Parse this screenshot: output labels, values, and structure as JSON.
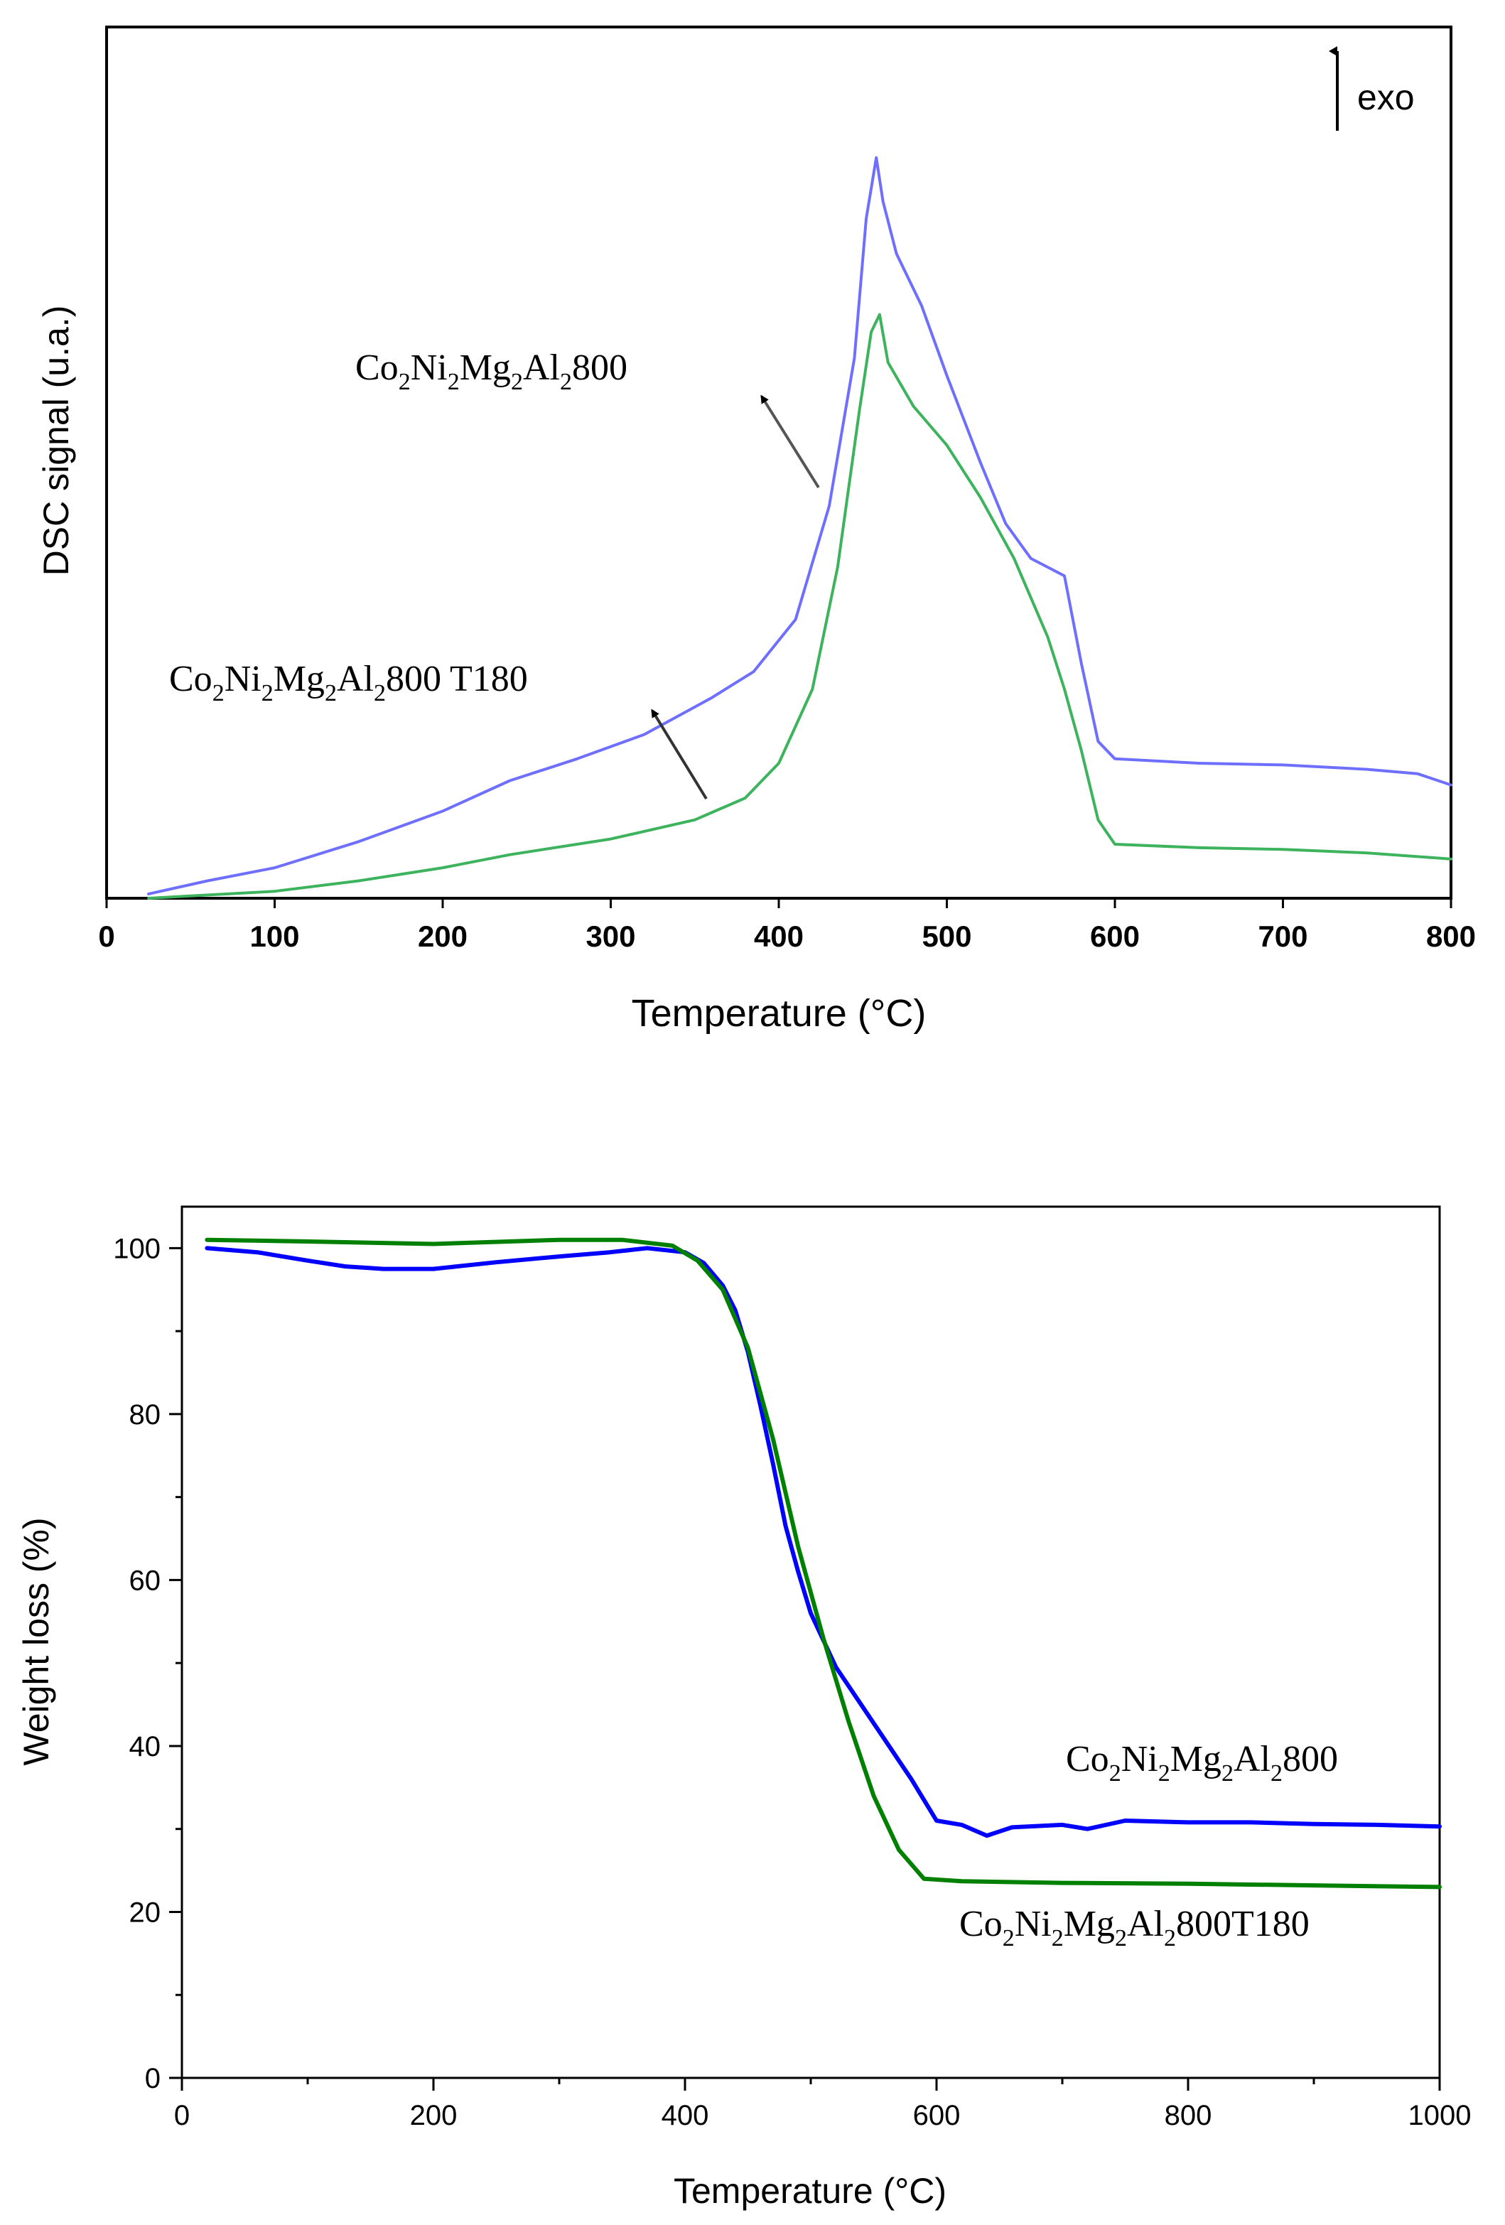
{
  "chart_data": [
    {
      "type": "line",
      "title": "",
      "xlabel": "Temperature (°C)",
      "ylabel": "DSC signal (u.a.)",
      "xlim": [
        0,
        800
      ],
      "ylim": [
        0,
        100
      ],
      "x_ticks": [
        "0",
        "100",
        "200",
        "300",
        "400",
        "500",
        "600",
        "700",
        "800"
      ],
      "y_ticks": [],
      "grid": false,
      "annotations": {
        "exo_label": "exo",
        "label_a": {
          "base": "Co",
          "s1": "2",
          "t1": "Ni",
          "s2": "2",
          "t2": "Mg",
          "s3": "2",
          "t3": "Al",
          "s4": "2",
          "t4": "800"
        },
        "label_b": {
          "base": "Co",
          "s1": "2",
          "t1": "Ni",
          "s2": "2",
          "t2": "Mg",
          "s3": "2",
          "t3": "Al",
          "s4": "2",
          "t4": "800 T180"
        }
      },
      "series": [
        {
          "name": "Co2Ni2Mg2Al2800",
          "color": "#6f6fff",
          "x": [
            25,
            60,
            100,
            150,
            200,
            240,
            280,
            320,
            360,
            385,
            410,
            430,
            445,
            452,
            458,
            462,
            470,
            485,
            500,
            520,
            535,
            550,
            560,
            570,
            580,
            590,
            600,
            650,
            700,
            750,
            780,
            800
          ],
          "y": [
            0.5,
            2.0,
            3.5,
            6.5,
            10.0,
            13.5,
            16.0,
            18.8,
            23.0,
            26.0,
            32.0,
            45.0,
            62.0,
            78.0,
            85.0,
            80.0,
            74.0,
            68.0,
            60.0,
            50.0,
            43.0,
            39.0,
            38.0,
            37.0,
            27.0,
            18.0,
            16.0,
            15.5,
            15.3,
            14.8,
            14.3,
            13.0
          ]
        },
        {
          "name": "Co2Ni2Mg2Al2800 T180",
          "color": "#3cb35c",
          "x": [
            25,
            100,
            150,
            200,
            240,
            300,
            350,
            380,
            400,
            420,
            435,
            448,
            455,
            460,
            465,
            480,
            500,
            520,
            540,
            560,
            570,
            580,
            590,
            600,
            650,
            700,
            750,
            800
          ],
          "y": [
            0.0,
            0.8,
            2.0,
            3.5,
            5.0,
            6.8,
            9.0,
            11.5,
            15.5,
            24.0,
            38.0,
            56.0,
            65.0,
            67.0,
            61.5,
            56.5,
            52.0,
            46.0,
            39.0,
            30.0,
            24.0,
            17.0,
            9.0,
            6.2,
            5.8,
            5.6,
            5.2,
            4.5
          ]
        }
      ]
    },
    {
      "type": "line",
      "title": "",
      "xlabel": "Temperature (°C)",
      "ylabel": "Weight loss (%)",
      "xlim": [
        0,
        1000
      ],
      "ylim": [
        0,
        105
      ],
      "x_ticks": [
        "0",
        "200",
        "400",
        "600",
        "800",
        "1000"
      ],
      "y_ticks": [
        "0",
        "20",
        "40",
        "60",
        "80",
        "100"
      ],
      "grid": false,
      "annotations": {
        "label_a": {
          "base": "Co",
          "s1": "2",
          "t1": "Ni",
          "s2": "2",
          "t2": "Mg",
          "s3": "2",
          "t3": "Al",
          "s4": "2",
          "t4": "800"
        },
        "label_b": {
          "base": "Co",
          "s1": "2",
          "t1": "Ni",
          "s2": "2",
          "t2": "Mg",
          "s3": "2",
          "t3": "Al",
          "s4": "2",
          "t4": "800T180"
        }
      },
      "series": [
        {
          "name": "Co2Ni2Mg2Al2800",
          "color": "#0000ff",
          "x": [
            20,
            60,
            100,
            130,
            160,
            200,
            250,
            300,
            340,
            370,
            400,
            415,
            430,
            440,
            450,
            460,
            470,
            480,
            490,
            500,
            520,
            540,
            560,
            580,
            600,
            620,
            640,
            660,
            700,
            720,
            750,
            800,
            850,
            900,
            950,
            1000
          ],
          "y": [
            100.0,
            99.5,
            98.5,
            97.8,
            97.5,
            97.5,
            98.3,
            99.0,
            99.5,
            100.0,
            99.5,
            98.2,
            95.5,
            92.5,
            87.5,
            81.0,
            74.0,
            66.5,
            61.0,
            56.0,
            49.5,
            45.0,
            40.5,
            36.0,
            31.0,
            30.5,
            29.2,
            30.2,
            30.5,
            30.0,
            31.0,
            30.8,
            30.8,
            30.6,
            30.5,
            30.3
          ]
        },
        {
          "name": "Co2Ni2Mg2Al2800T180",
          "color": "#008000",
          "x": [
            20,
            100,
            200,
            300,
            350,
            390,
            410,
            430,
            450,
            470,
            490,
            510,
            530,
            550,
            570,
            590,
            620,
            700,
            800,
            900,
            1000
          ],
          "y": [
            101.0,
            100.8,
            100.5,
            101.0,
            101.0,
            100.3,
            98.5,
            95.0,
            88.0,
            77.0,
            64.0,
            53.0,
            43.0,
            34.0,
            27.5,
            24.0,
            23.7,
            23.5,
            23.4,
            23.2,
            23.0
          ]
        }
      ]
    }
  ]
}
